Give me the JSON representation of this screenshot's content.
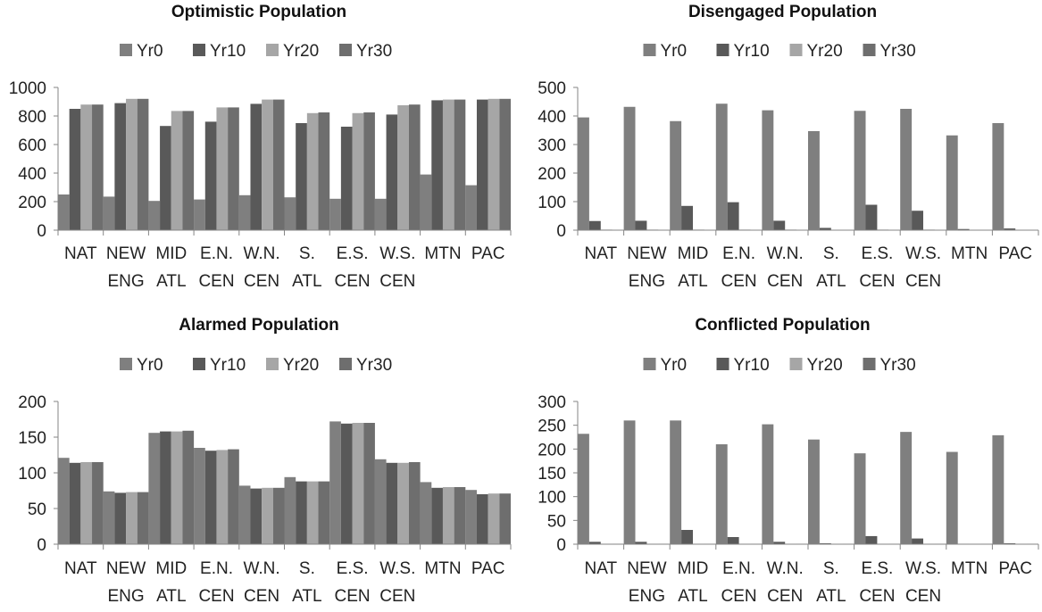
{
  "chart_data": [
    {
      "type": "bar",
      "title": "Optimistic Population",
      "categories": [
        [
          "NAT"
        ],
        [
          "NEW",
          "ENG"
        ],
        [
          "MID",
          "ATL"
        ],
        [
          "E.N.",
          "CEN"
        ],
        [
          "W.N.",
          "CEN"
        ],
        [
          "S.",
          "ATL"
        ],
        [
          "E.S.",
          "CEN"
        ],
        [
          "W.S.",
          "CEN"
        ],
        [
          "MTN"
        ],
        [
          "PAC"
        ]
      ],
      "ylim": [
        0,
        1000
      ],
      "yticks": [
        0,
        200,
        400,
        600,
        800,
        1000
      ],
      "legend_position": "top",
      "series": [
        {
          "name": "Yr0",
          "color": "#7f7f7f",
          "values": [
            250,
            235,
            205,
            215,
            245,
            230,
            220,
            220,
            390,
            315
          ]
        },
        {
          "name": "Yr10",
          "color": "#595959",
          "values": [
            850,
            890,
            730,
            760,
            885,
            750,
            725,
            810,
            910,
            915
          ]
        },
        {
          "name": "Yr20",
          "color": "#a6a6a6",
          "values": [
            880,
            920,
            835,
            860,
            915,
            820,
            820,
            875,
            915,
            920
          ]
        },
        {
          "name": "Yr30",
          "color": "#6e6e6e",
          "values": [
            880,
            920,
            835,
            860,
            915,
            825,
            825,
            880,
            915,
            920
          ]
        }
      ]
    },
    {
      "type": "bar",
      "title": "Disengaged Population",
      "categories": [
        [
          "NAT"
        ],
        [
          "NEW",
          "ENG"
        ],
        [
          "MID",
          "ATL"
        ],
        [
          "E.N.",
          "CEN"
        ],
        [
          "W.N.",
          "CEN"
        ],
        [
          "S.",
          "ATL"
        ],
        [
          "E.S.",
          "CEN"
        ],
        [
          "W.S.",
          "CEN"
        ],
        [
          "MTN"
        ],
        [
          "PAC"
        ]
      ],
      "ylim": [
        0,
        500
      ],
      "yticks": [
        0,
        100,
        200,
        300,
        400,
        500
      ],
      "legend_position": "top",
      "series": [
        {
          "name": "Yr0",
          "color": "#7f7f7f",
          "values": [
            395,
            432,
            382,
            443,
            420,
            347,
            418,
            425,
            332,
            375
          ]
        },
        {
          "name": "Yr10",
          "color": "#595959",
          "values": [
            32,
            33,
            85,
            98,
            33,
            8,
            89,
            68,
            4,
            6
          ]
        },
        {
          "name": "Yr20",
          "color": "#a6a6a6",
          "values": [
            2,
            2,
            2,
            2,
            2,
            1,
            2,
            2,
            1,
            1
          ]
        },
        {
          "name": "Yr30",
          "color": "#6e6e6e",
          "values": [
            1,
            1,
            1,
            1,
            1,
            1,
            1,
            1,
            1,
            1
          ]
        }
      ]
    },
    {
      "type": "bar",
      "title": "Alarmed Population",
      "categories": [
        [
          "NAT"
        ],
        [
          "NEW",
          "ENG"
        ],
        [
          "MID",
          "ATL"
        ],
        [
          "E.N.",
          "CEN"
        ],
        [
          "W.N.",
          "CEN"
        ],
        [
          "S.",
          "ATL"
        ],
        [
          "E.S.",
          "CEN"
        ],
        [
          "W.S.",
          "CEN"
        ],
        [
          "MTN"
        ],
        [
          "PAC"
        ]
      ],
      "ylim": [
        0,
        200
      ],
      "yticks": [
        0,
        50,
        100,
        150,
        200
      ],
      "legend_position": "top",
      "series": [
        {
          "name": "Yr0",
          "color": "#7f7f7f",
          "values": [
            121,
            74,
            156,
            135,
            82,
            94,
            172,
            119,
            87,
            76
          ]
        },
        {
          "name": "Yr10",
          "color": "#595959",
          "values": [
            114,
            72,
            158,
            131,
            78,
            88,
            169,
            114,
            79,
            70
          ]
        },
        {
          "name": "Yr20",
          "color": "#a6a6a6",
          "values": [
            115,
            73,
            158,
            132,
            79,
            88,
            170,
            114,
            80,
            71
          ]
        },
        {
          "name": "Yr30",
          "color": "#6e6e6e",
          "values": [
            115,
            73,
            159,
            133,
            79,
            88,
            170,
            115,
            80,
            71
          ]
        }
      ]
    },
    {
      "type": "bar",
      "title": "Conflicted Population",
      "categories": [
        [
          "NAT"
        ],
        [
          "NEW",
          "ENG"
        ],
        [
          "MID",
          "ATL"
        ],
        [
          "E.N.",
          "CEN"
        ],
        [
          "W.N.",
          "CEN"
        ],
        [
          "S.",
          "ATL"
        ],
        [
          "E.S.",
          "CEN"
        ],
        [
          "W.S.",
          "CEN"
        ],
        [
          "MTN"
        ],
        [
          "PAC"
        ]
      ],
      "ylim": [
        0,
        300
      ],
      "yticks": [
        0,
        50,
        100,
        150,
        200,
        250,
        300
      ],
      "legend_position": "top",
      "series": [
        {
          "name": "Yr0",
          "color": "#7f7f7f",
          "values": [
            232,
            260,
            260,
            210,
            252,
            220,
            191,
            236,
            194,
            229
          ]
        },
        {
          "name": "Yr10",
          "color": "#595959",
          "values": [
            5,
            5,
            30,
            15,
            5,
            2,
            17,
            12,
            1,
            2
          ]
        },
        {
          "name": "Yr20",
          "color": "#a6a6a6",
          "values": [
            1,
            1,
            1,
            1,
            1,
            1,
            1,
            1,
            1,
            1
          ]
        },
        {
          "name": "Yr30",
          "color": "#6e6e6e",
          "values": [
            1,
            1,
            1,
            1,
            1,
            1,
            1,
            1,
            1,
            1
          ]
        }
      ]
    }
  ]
}
